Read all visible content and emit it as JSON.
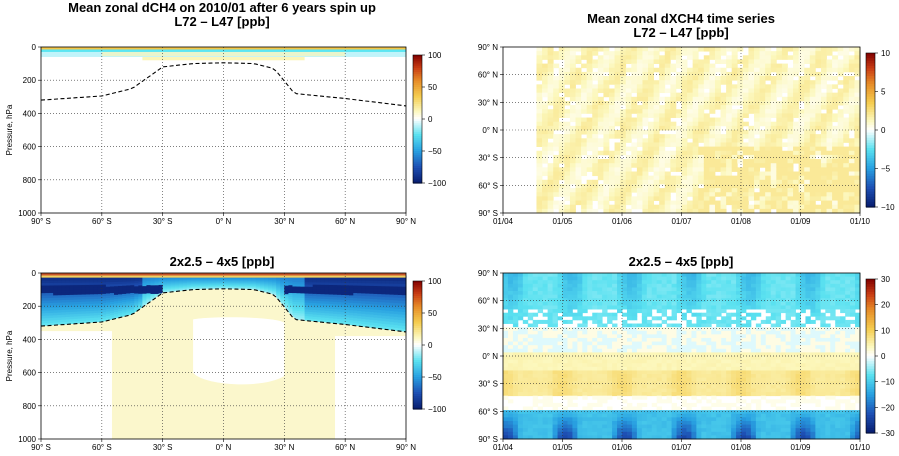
{
  "titles": {
    "p1_line1": "Mean zonal dCH4 on 2010/01 after 6 years spin up",
    "p1_line2": "L72 – L47 [ppb]",
    "p2_line1": "Mean zonal dXCH4 time series",
    "p2_line2": "L72 – L47 [ppb]",
    "p3": "2x2.5 – 4x5 [ppb]",
    "p4": "2x2.5 – 4x5 [ppb]"
  },
  "chart_data": [
    {
      "id": "p1",
      "type": "heatmap",
      "title": "Mean zonal dCH4 on 2010/01 after 6 years spin up L72 – L47 [ppb]",
      "ylabel": "Pressure, hPa",
      "x_ticks": [
        "90° S",
        "60° S",
        "30° S",
        "0° N",
        "30° N",
        "60° N",
        "90° N"
      ],
      "x_tick_values": [
        -90,
        -60,
        -30,
        0,
        30,
        60,
        90
      ],
      "y_ticks": [
        "0",
        "200",
        "400",
        "600",
        "800",
        "1000"
      ],
      "y_tick_values": [
        0,
        200,
        400,
        600,
        800,
        1000
      ],
      "ylim": [
        1000,
        0
      ],
      "colorbar_ticks": [
        "100",
        "50",
        "0",
        "−50",
        "−100"
      ],
      "colorbar_values": [
        100,
        50,
        0,
        -50,
        -100
      ],
      "tropopause_lat": [
        -90,
        -60,
        -45,
        -30,
        -15,
        0,
        15,
        25,
        35,
        60,
        90
      ],
      "tropopause_hpa": [
        320,
        295,
        250,
        120,
        100,
        95,
        100,
        130,
        280,
        310,
        355
      ],
      "regions": [
        {
          "lat": [
            -90,
            90
          ],
          "p": [
            0,
            15
          ],
          "color": "#f3c64a"
        },
        {
          "lat": [
            -90,
            90
          ],
          "p": [
            15,
            30
          ],
          "color": "#5be6f2"
        },
        {
          "lat": [
            -90,
            90
          ],
          "p": [
            30,
            60
          ],
          "color": "#c0f4fa"
        },
        {
          "lat": [
            -40,
            40
          ],
          "p": [
            60,
            80
          ],
          "color": "#fbf5b8"
        }
      ],
      "grid": true
    },
    {
      "id": "p2",
      "type": "heatmap",
      "title": "Mean zonal dXCH4 time series L72 – L47 [ppb]",
      "x_ticks": [
        "01/04",
        "01/05",
        "01/06",
        "01/07",
        "01/08",
        "01/09",
        "01/10"
      ],
      "y_ticks": [
        "90° N",
        "60° N",
        "30° N",
        "0° N",
        "30° S",
        "60° S",
        "90° S"
      ],
      "y_tick_values": [
        90,
        60,
        30,
        0,
        -30,
        -60,
        -90
      ],
      "colorbar_ticks": [
        "10",
        "5",
        "0",
        "−5",
        "−10"
      ],
      "colorbar_values": [
        10,
        5,
        0,
        -5,
        -10
      ],
      "data_start": "2004-07",
      "grid": true
    },
    {
      "id": "p3",
      "type": "heatmap",
      "title": "2x2.5 – 4x5 [ppb]",
      "ylabel": "Pressure, hPa",
      "x_ticks": [
        "90° S",
        "60° S",
        "30° S",
        "0° N",
        "30° N",
        "60° N",
        "90° N"
      ],
      "x_tick_values": [
        -90,
        -60,
        -30,
        0,
        30,
        60,
        90
      ],
      "y_ticks": [
        "0",
        "200",
        "400",
        "600",
        "800",
        "1000"
      ],
      "y_tick_values": [
        0,
        200,
        400,
        600,
        800,
        1000
      ],
      "ylim": [
        1000,
        0
      ],
      "colorbar_ticks": [
        "100",
        "50",
        "0",
        "−50",
        "−100"
      ],
      "colorbar_values": [
        100,
        50,
        0,
        -50,
        -100
      ],
      "tropopause_lat": [
        -90,
        -60,
        -45,
        -30,
        -15,
        0,
        15,
        25,
        35,
        60,
        90
      ],
      "tropopause_hpa": [
        320,
        295,
        250,
        120,
        100,
        95,
        100,
        130,
        280,
        310,
        355
      ],
      "grid": true
    },
    {
      "id": "p4",
      "type": "heatmap",
      "title": "2x2.5 – 4x5 [ppb]",
      "x_ticks": [
        "01/04",
        "01/05",
        "01/06",
        "01/07",
        "01/08",
        "01/09",
        "01/10"
      ],
      "y_ticks": [
        "90° N",
        "60° N",
        "30° N",
        "0° N",
        "30° S",
        "60° S",
        "90° S"
      ],
      "y_tick_values": [
        90,
        60,
        30,
        0,
        -30,
        -60,
        -90
      ],
      "colorbar_ticks": [
        "30",
        "20",
        "10",
        "0",
        "−10",
        "−20",
        "−30"
      ],
      "colorbar_values": [
        30,
        20,
        10,
        0,
        -10,
        -20,
        -30
      ],
      "grid": true
    }
  ]
}
